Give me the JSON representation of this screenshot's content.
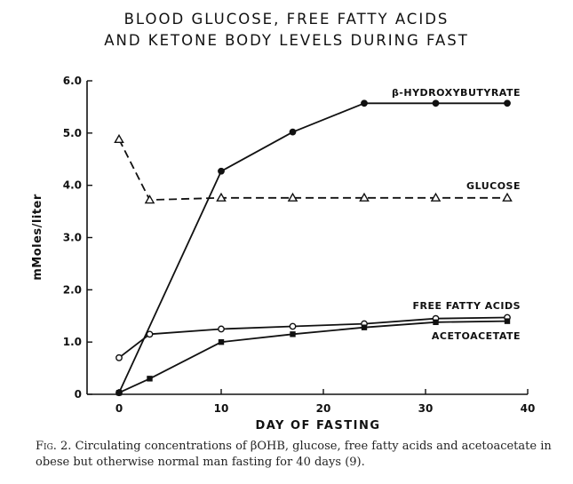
{
  "chart_data": {
    "type": "line",
    "title": [
      "BLOOD GLUCOSE, FREE FATTY ACIDS",
      "AND KETONE BODY LEVELS DURING FAST"
    ],
    "xlabel": "DAY OF FASTING",
    "ylabel": "mMoles/liter",
    "xlim": [
      0,
      40
    ],
    "ylim": [
      0,
      6.0
    ],
    "x_ticks": [
      "0",
      "10",
      "20",
      "30",
      "40"
    ],
    "y_ticks": [
      "0",
      "1.0",
      "2.0",
      "3.0",
      "4.0",
      "5.0",
      "6.0"
    ],
    "grid": false,
    "series": [
      {
        "name": "β-HYDROXYBUTYRATE",
        "style": "solid",
        "marker": "filled-circle",
        "points": [
          [
            0,
            0.03
          ],
          [
            10,
            4.27
          ],
          [
            17,
            5.02
          ],
          [
            24,
            5.57
          ],
          [
            31,
            5.57
          ],
          [
            38,
            5.57
          ]
        ]
      },
      {
        "name": "GLUCOSE",
        "style": "dashed",
        "marker": "open-triangle",
        "points": [
          [
            0,
            4.88
          ],
          [
            3,
            3.72
          ],
          [
            10,
            3.76
          ],
          [
            17,
            3.76
          ],
          [
            24,
            3.76
          ],
          [
            31,
            3.76
          ],
          [
            38,
            3.76
          ]
        ]
      },
      {
        "name": "FREE FATTY ACIDS",
        "style": "solid",
        "marker": "open-circle",
        "points": [
          [
            0,
            0.7
          ],
          [
            3,
            1.15
          ],
          [
            10,
            1.25
          ],
          [
            17,
            1.3
          ],
          [
            24,
            1.35
          ],
          [
            31,
            1.45
          ],
          [
            38,
            1.47
          ]
        ]
      },
      {
        "name": "ACETOACETATE",
        "style": "solid",
        "marker": "filled-square",
        "points": [
          [
            0,
            0.03
          ],
          [
            3,
            0.3
          ],
          [
            10,
            1.0
          ],
          [
            17,
            1.15
          ],
          [
            24,
            1.28
          ],
          [
            31,
            1.38
          ],
          [
            38,
            1.4
          ]
        ]
      }
    ]
  },
  "caption": {
    "fig_label": "Fig. 2.",
    "text": "Circulating concentrations of βOHB, glucose, free fatty acids and acetoacetate in obese but otherwise normal man fasting for 40 days (9)."
  }
}
